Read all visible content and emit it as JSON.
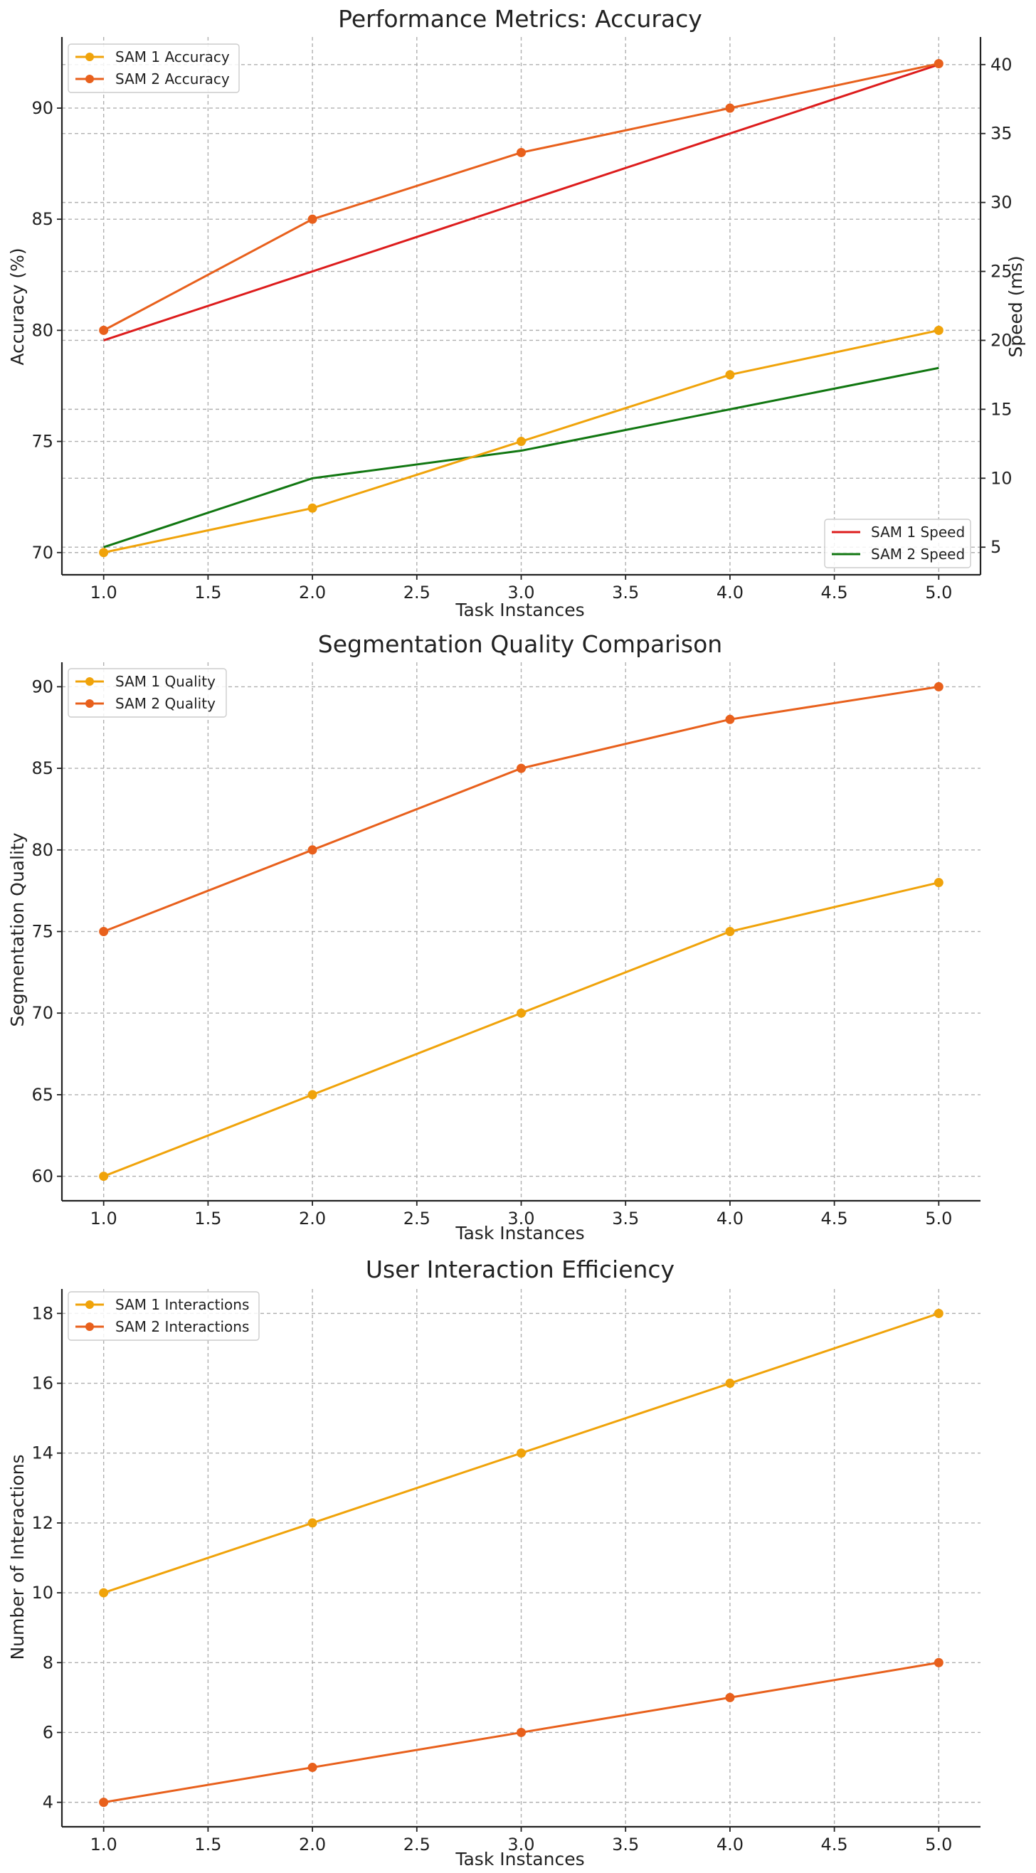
{
  "chart_data": [
    {
      "type": "line",
      "title": "Performance Metrics: Accuracy",
      "xlabel": "Task Instances",
      "ylabel": "Accuracy (%)",
      "ylabel_right": "Speed (ms)",
      "x": [
        1,
        2,
        3,
        4,
        5
      ],
      "xlim": [
        0.8,
        5.2
      ],
      "ylim": [
        69.0,
        93.2
      ],
      "ylim_right": [
        3.0,
        42.0
      ],
      "xticks": [
        "1.0",
        "1.5",
        "2.0",
        "2.5",
        "3.0",
        "3.5",
        "4.0",
        "4.5",
        "5.0"
      ],
      "yticks": [
        "70",
        "75",
        "80",
        "85",
        "90"
      ],
      "yticks_right": [
        "5",
        "10",
        "15",
        "20",
        "25",
        "30",
        "35",
        "40"
      ],
      "grid": true,
      "series": [
        {
          "name": "SAM 1 Accuracy",
          "values": [
            70,
            72,
            75,
            78,
            80
          ],
          "color": "#f0a30a",
          "marker": true,
          "axis": "left"
        },
        {
          "name": "SAM 2 Accuracy",
          "values": [
            80,
            85,
            88,
            90,
            92
          ],
          "color": "#e8601c",
          "marker": true,
          "axis": "left"
        }
      ],
      "series_right": [
        {
          "name": "SAM 1 Speed",
          "values": [
            20,
            25,
            30,
            35,
            40
          ],
          "color": "#dd1c1c",
          "marker": false,
          "axis": "right"
        },
        {
          "name": "SAM 2 Speed",
          "values": [
            5,
            10,
            12,
            15,
            18
          ],
          "color": "#117711",
          "marker": false,
          "axis": "right"
        }
      ],
      "legend_placement": "upper-left",
      "legend_right_placement": "lower-right"
    },
    {
      "type": "line",
      "title": "Segmentation Quality Comparison",
      "xlabel": "Task Instances",
      "ylabel": "Segmentation Quality",
      "x": [
        1,
        2,
        3,
        4,
        5
      ],
      "xlim": [
        0.8,
        5.2
      ],
      "ylim": [
        58.5,
        91.5
      ],
      "xticks": [
        "1.0",
        "1.5",
        "2.0",
        "2.5",
        "3.0",
        "3.5",
        "4.0",
        "4.5",
        "5.0"
      ],
      "yticks": [
        "60",
        "65",
        "70",
        "75",
        "80",
        "85",
        "90"
      ],
      "grid": true,
      "series": [
        {
          "name": "SAM 1 Quality",
          "values": [
            60,
            65,
            70,
            75,
            78
          ],
          "color": "#f0a30a",
          "marker": true,
          "axis": "left"
        },
        {
          "name": "SAM 2 Quality",
          "values": [
            75,
            80,
            85,
            88,
            90
          ],
          "color": "#e8601c",
          "marker": true,
          "axis": "left"
        }
      ],
      "legend_placement": "upper-left"
    },
    {
      "type": "line",
      "title": "User Interaction Efficiency",
      "xlabel": "Task Instances",
      "ylabel": "Number of Interactions",
      "x": [
        1,
        2,
        3,
        4,
        5
      ],
      "xlim": [
        0.8,
        5.2
      ],
      "ylim": [
        3.3,
        18.7
      ],
      "xticks": [
        "1.0",
        "1.5",
        "2.0",
        "2.5",
        "3.0",
        "3.5",
        "4.0",
        "4.5",
        "5.0"
      ],
      "yticks": [
        "4",
        "6",
        "8",
        "10",
        "12",
        "14",
        "16",
        "18"
      ],
      "grid": true,
      "series": [
        {
          "name": "SAM 1 Interactions",
          "values": [
            10,
            12,
            14,
            16,
            18
          ],
          "color": "#f0a30a",
          "marker": true,
          "axis": "left"
        },
        {
          "name": "SAM 2 Interactions",
          "values": [
            4,
            5,
            6,
            7,
            8
          ],
          "color": "#e8601c",
          "marker": true,
          "axis": "left"
        }
      ],
      "legend_placement": "upper-left"
    }
  ]
}
